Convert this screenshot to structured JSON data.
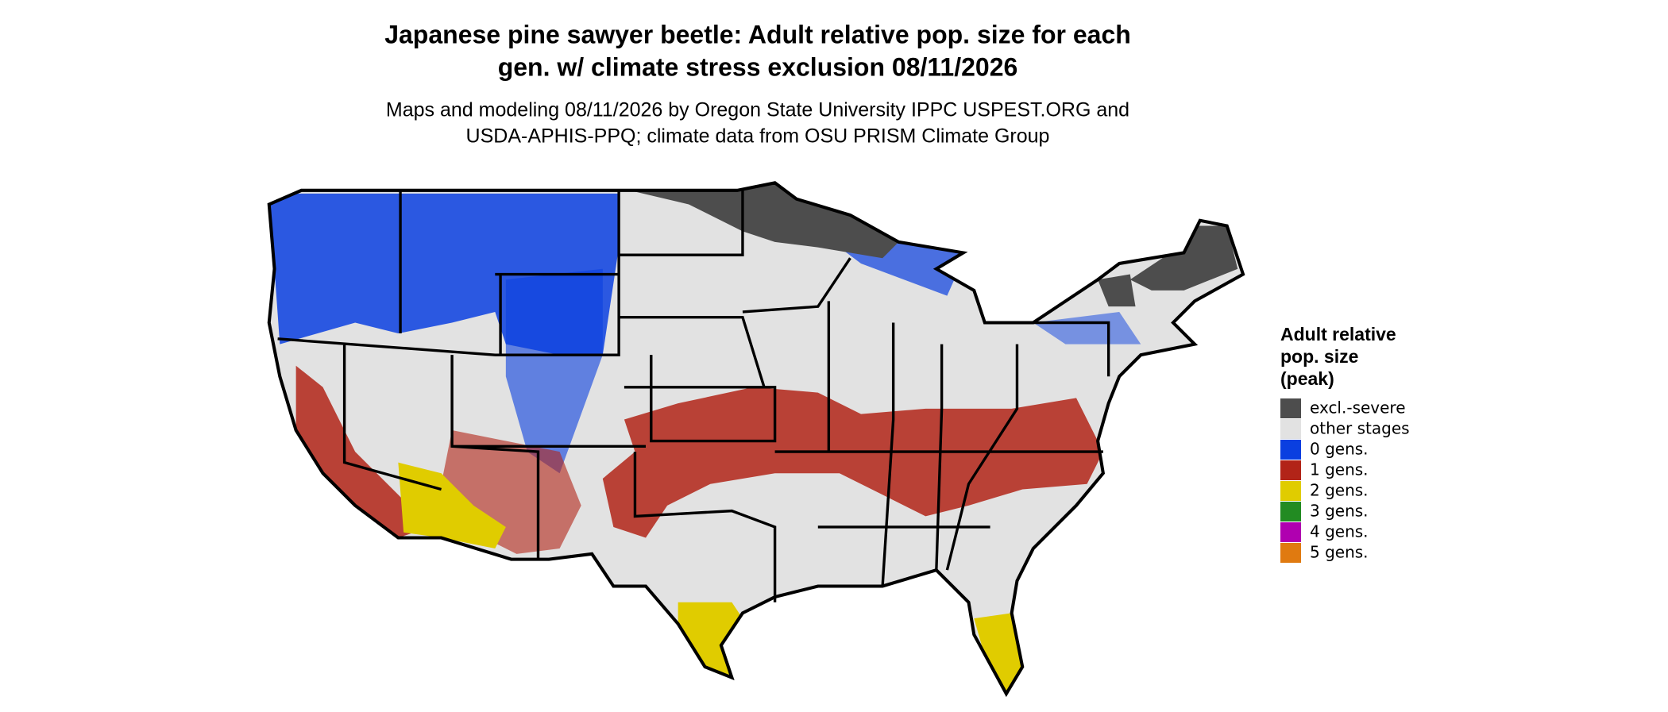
{
  "header": {
    "title": [
      "Japanese pine sawyer beetle: Adult relative pop. size for each",
      "gen. w/ climate stress exclusion 08/11/2026"
    ],
    "subtitle": [
      "Maps and modeling 08/11/2026 by Oregon State University IPPC USPEST.ORG and",
      "USDA-APHIS-PPQ; climate data from OSU PRISM Climate Group"
    ]
  },
  "legend": {
    "title": [
      "Adult relative",
      "pop. size",
      "(peak)"
    ],
    "items": [
      {
        "label": "excl.-severe",
        "color": "#4d4d4d"
      },
      {
        "label": "other stages",
        "color": "#e2e2e2"
      },
      {
        "label": "0 gens.",
        "color": "#0a3fe0"
      },
      {
        "label": "1 gens.",
        "color": "#b22418"
      },
      {
        "label": "2 gens.",
        "color": "#e0cc00"
      },
      {
        "label": "3 gens.",
        "color": "#228b22"
      },
      {
        "label": "4 gens.",
        "color": "#b000b0"
      },
      {
        "label": "5 gens.",
        "color": "#e07a10"
      }
    ]
  }
}
